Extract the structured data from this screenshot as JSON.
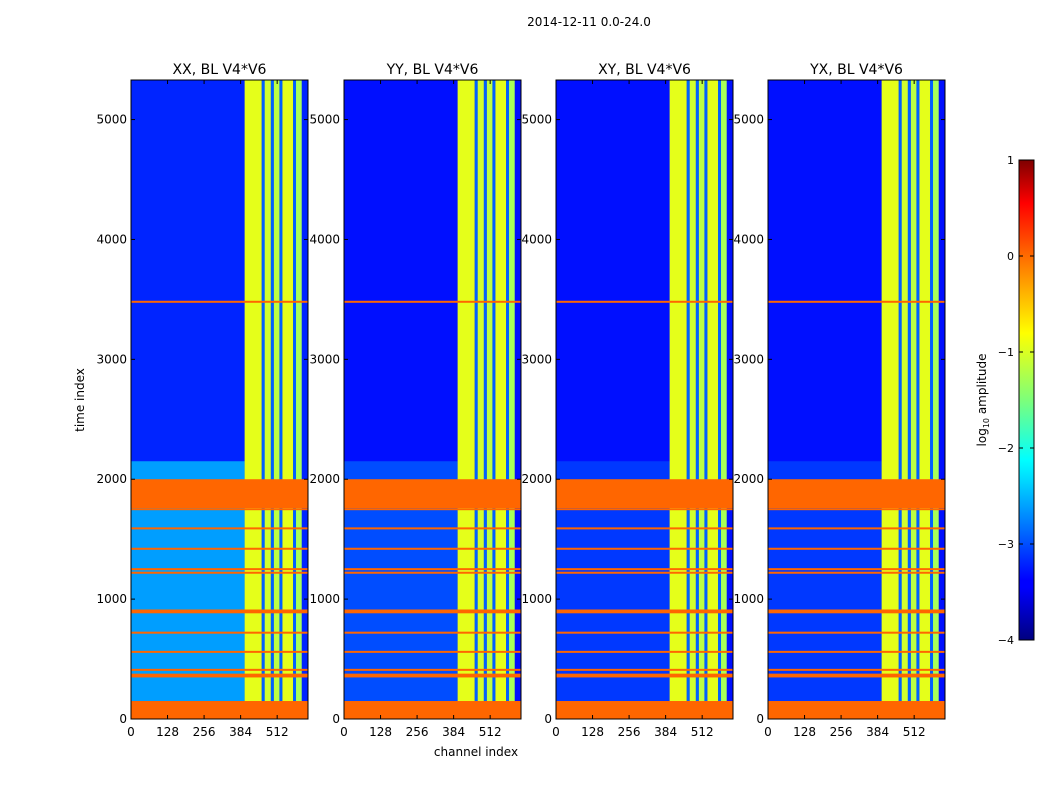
{
  "figure_title": "2014-12-11 0.0-24.0",
  "chart_data": {
    "type": "heatmap",
    "suptitle": "2014-12-11 0.0-24.0",
    "xlabel": "channel index",
    "ylabel": "time index",
    "xlim": [
      0,
      620
    ],
    "ylim": [
      0,
      5330
    ],
    "x_ticks": [
      0,
      128,
      256,
      384,
      512
    ],
    "x_tick_labels": [
      "0",
      "128",
      "256",
      "384",
      "512"
    ],
    "y_ticks": [
      0,
      1000,
      2000,
      3000,
      4000,
      5000
    ],
    "y_tick_labels": [
      "0",
      "1000",
      "2000",
      "3000",
      "4000",
      "5000"
    ],
    "colorbar": {
      "label": "log10 amplitude",
      "range": [
        -4,
        1
      ],
      "ticks": [
        1,
        0,
        -1,
        -2,
        -3,
        -4
      ],
      "tick_labels": [
        "1",
        "0",
        "−1",
        "−2",
        "−3",
        "−4"
      ]
    },
    "panels": [
      {
        "title": "XX, BL V4*V6",
        "background_level": -3.2,
        "bright_region_level": -2.6
      },
      {
        "title": "YY, BL V4*V6",
        "background_level": -3.3,
        "bright_region_level": -3.0
      },
      {
        "title": "XY, BL V4*V6",
        "background_level": -3.3,
        "bright_region_level": -3.1
      },
      {
        "title": "YX, BL V4*V6",
        "background_level": -3.3,
        "bright_region_level": -3.1
      }
    ],
    "flagged_color": "#ff6600",
    "flagged_time_ranges": [
      [
        0,
        150
      ],
      [
        1760,
        2000
      ]
    ],
    "flag_lines_time": [
      355,
      370,
      410,
      560,
      720,
      890,
      905,
      1220,
      1250,
      1420,
      1590,
      1750,
      3480
    ],
    "bright_channel_bands": [
      {
        "start": 398,
        "end": 458,
        "level": -1.0
      },
      {
        "start": 468,
        "end": 490,
        "level": -1.1
      },
      {
        "start": 500,
        "end": 520,
        "level": -1.2
      },
      {
        "start": 530,
        "end": 568,
        "level": -1.0
      },
      {
        "start": 578,
        "end": 598,
        "level": -1.3
      }
    ],
    "gap_channel_bands": [
      {
        "start": 458,
        "end": 468,
        "level": -2.9
      },
      {
        "start": 490,
        "end": 500,
        "level": -2.9
      },
      {
        "start": 520,
        "end": 530,
        "level": -2.9
      },
      {
        "start": 568,
        "end": 578,
        "level": -2.9
      }
    ],
    "bright_time_region": [
      150,
      2150
    ]
  }
}
